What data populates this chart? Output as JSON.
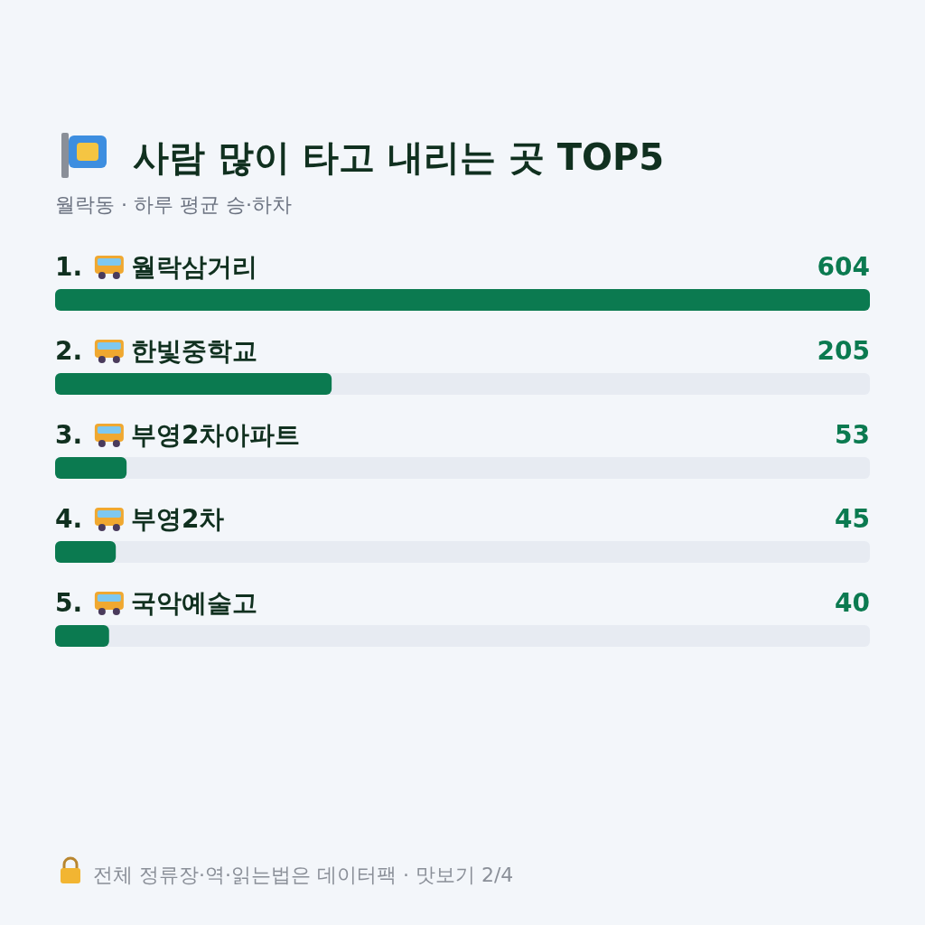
{
  "chart_data": {
    "type": "bar",
    "orientation": "horizontal",
    "title": "사람 많이 타고 내리는 곳 TOP5",
    "subtitle": "월락동 · 하루 평균 승·하차",
    "categories": [
      "1. 월락삼거리",
      "2. 한빛중학교",
      "3. 부영2차아파트",
      "4. 부영2차",
      "5. 국악예술고"
    ],
    "values": [
      604,
      205,
      53,
      45,
      40
    ],
    "color": "#0b7a50",
    "data_labels": true,
    "annotations": [
      "전체 정류장·역·읽는법은 데이터팩 · 맛보기 2/4"
    ]
  }
}
